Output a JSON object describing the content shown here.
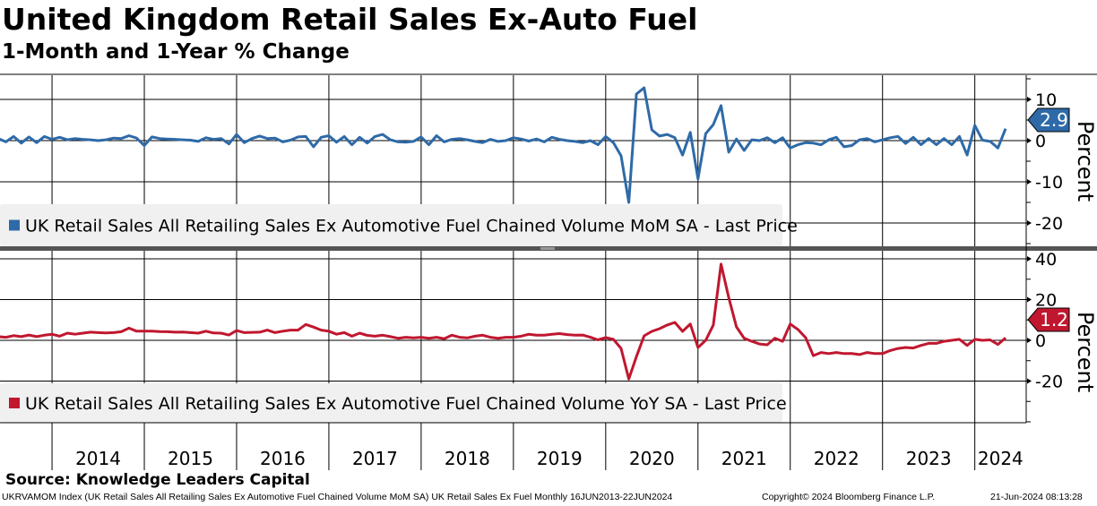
{
  "header": {
    "title": "United Kingdom Retail Sales Ex-Auto Fuel",
    "subtitle": "1-Month and 1-Year % Change"
  },
  "footer": {
    "source": "Source: Knowledge Leaders Capital",
    "description": "UKRVAMOM Index (UK Retail Sales All Retailing Sales Ex Automotive Fuel Chained Volume MoM SA) UK Retail Sales Ex Fuel  Monthly 16JUN2013-22JUN2024",
    "copyright": "Copyright© 2024 Bloomberg Finance L.P.",
    "timestamp": "21-Jun-2024 08:13:28"
  },
  "chart_data": [
    {
      "type": "line",
      "panel": "top",
      "start_month": "2013-06",
      "end_month": "2024-05",
      "series": [
        {
          "name": "UK Retail Sales All Retailing Sales Ex Automotive Fuel Chained Volume MoM SA - Last Price",
          "color": "#2e6aa8",
          "last_value_label": "2.9",
          "values": [
            0.5,
            -0.3,
            1.0,
            -0.6,
            0.9,
            -0.5,
            1.0,
            0.3,
            0.8,
            0.2,
            0.5,
            0.3,
            0.2,
            0.0,
            0.2,
            0.6,
            0.5,
            1.2,
            0.6,
            -1.2,
            0.9,
            0.5,
            0.4,
            0.3,
            0.2,
            0.1,
            -0.2,
            0.7,
            0.3,
            0.5,
            -0.8,
            1.5,
            -0.5,
            0.5,
            1.1,
            0.5,
            0.6,
            -0.3,
            0.1,
            0.9,
            1.0,
            -1.5,
            0.8,
            1.2,
            -0.4,
            1.0,
            -1.0,
            0.8,
            -0.6,
            1.0,
            1.5,
            0.2,
            -0.3,
            -0.4,
            -0.2,
            0.9,
            -1.0,
            1.2,
            -0.3,
            0.3,
            0.5,
            0.2,
            -0.2,
            -0.5,
            0.3,
            -0.2,
            0.0,
            0.7,
            0.4,
            -0.1,
            0.4,
            -0.3,
            0.8,
            0.3,
            0.0,
            -0.2,
            -0.5,
            0.0,
            -1.0,
            1.0,
            -0.5,
            -3.7,
            -15.0,
            11.3,
            12.8,
            2.6,
            1.1,
            1.5,
            0.7,
            -3.5,
            2.0,
            -9.3,
            1.7,
            3.9,
            8.5,
            -2.8,
            0.4,
            -2.4,
            0.2,
            0.0,
            0.7,
            -0.5,
            0.7,
            -1.8,
            -1.0,
            -0.5,
            -0.6,
            -1.0,
            0.2,
            0.8,
            -1.5,
            -1.2,
            0.2,
            0.5,
            -0.3,
            0.2,
            0.7,
            1.0,
            -0.7,
            0.8,
            -1.0,
            0.5,
            -1.0,
            0.5,
            -1.0,
            1.0,
            -3.5,
            3.7,
            0.1,
            -0.2,
            -1.8,
            2.9
          ]
        }
      ],
      "ylabel": "Percent",
      "ylim": [
        -25,
        15
      ],
      "yticks": [
        "10",
        "0",
        "-10",
        "-20"
      ],
      "ytick_values": [
        10,
        0,
        -10,
        -20
      ],
      "legend": "bottom-left",
      "grid": true
    },
    {
      "type": "line",
      "panel": "bottom",
      "start_month": "2013-06",
      "end_month": "2024-05",
      "series": [
        {
          "name": "UK Retail Sales All Retailing Sales Ex Automotive Fuel Chained Volume YoY SA - Last Price",
          "color": "#c0172f",
          "last_value_label": "1.2",
          "values": [
            1.8,
            1.5,
            2.3,
            1.8,
            2.6,
            1.8,
            2.5,
            3.0,
            2.0,
            3.5,
            3.0,
            3.5,
            4.0,
            3.8,
            3.6,
            3.8,
            4.2,
            6.0,
            4.5,
            4.5,
            4.5,
            4.3,
            4.2,
            4.0,
            4.1,
            3.8,
            3.5,
            4.5,
            3.6,
            3.5,
            2.6,
            4.8,
            3.8,
            3.9,
            4.0,
            5.0,
            3.8,
            4.5,
            5.0,
            5.0,
            7.8,
            6.5,
            5.0,
            4.5,
            3.0,
            3.8,
            2.0,
            3.5,
            2.4,
            2.0,
            2.5,
            1.8,
            1.0,
            1.5,
            1.2,
            1.5,
            1.0,
            1.5,
            0.8,
            2.5,
            1.5,
            1.2,
            2.0,
            2.5,
            1.5,
            1.0,
            1.5,
            1.5,
            2.0,
            3.0,
            2.5,
            2.5,
            3.0,
            3.3,
            2.8,
            2.5,
            2.6,
            1.5,
            0.2,
            1.3,
            0.5,
            -4.0,
            -19.0,
            -8.0,
            2.2,
            4.4,
            5.7,
            7.5,
            8.8,
            4.4,
            8.0,
            -3.5,
            0.0,
            7.5,
            37.4,
            21.0,
            6.6,
            1.0,
            -0.5,
            -1.8,
            -2.2,
            1.0,
            -0.5,
            8.0,
            5.3,
            1.3,
            -7.5,
            -6.0,
            -6.5,
            -6.0,
            -6.5,
            -6.5,
            -7.0,
            -6.0,
            -6.5,
            -6.5,
            -5.0,
            -4.0,
            -3.5,
            -3.8,
            -2.5,
            -1.5,
            -1.5,
            -0.5,
            0.0,
            0.5,
            -2.5,
            0.5,
            0.0,
            0.2,
            -2.0,
            1.2
          ]
        }
      ],
      "ylabel": "Percent",
      "ylim": [
        -40,
        45
      ],
      "yticks": [
        "40",
        "20",
        "0",
        "-20"
      ],
      "ytick_values": [
        40,
        20,
        0,
        -20
      ],
      "legend": "bottom-left",
      "grid": true
    }
  ],
  "xaxis": {
    "tick_labels": [
      "2014",
      "2015",
      "2016",
      "2017",
      "2018",
      "2019",
      "2020",
      "2021",
      "2022",
      "2023",
      "2024"
    ]
  }
}
